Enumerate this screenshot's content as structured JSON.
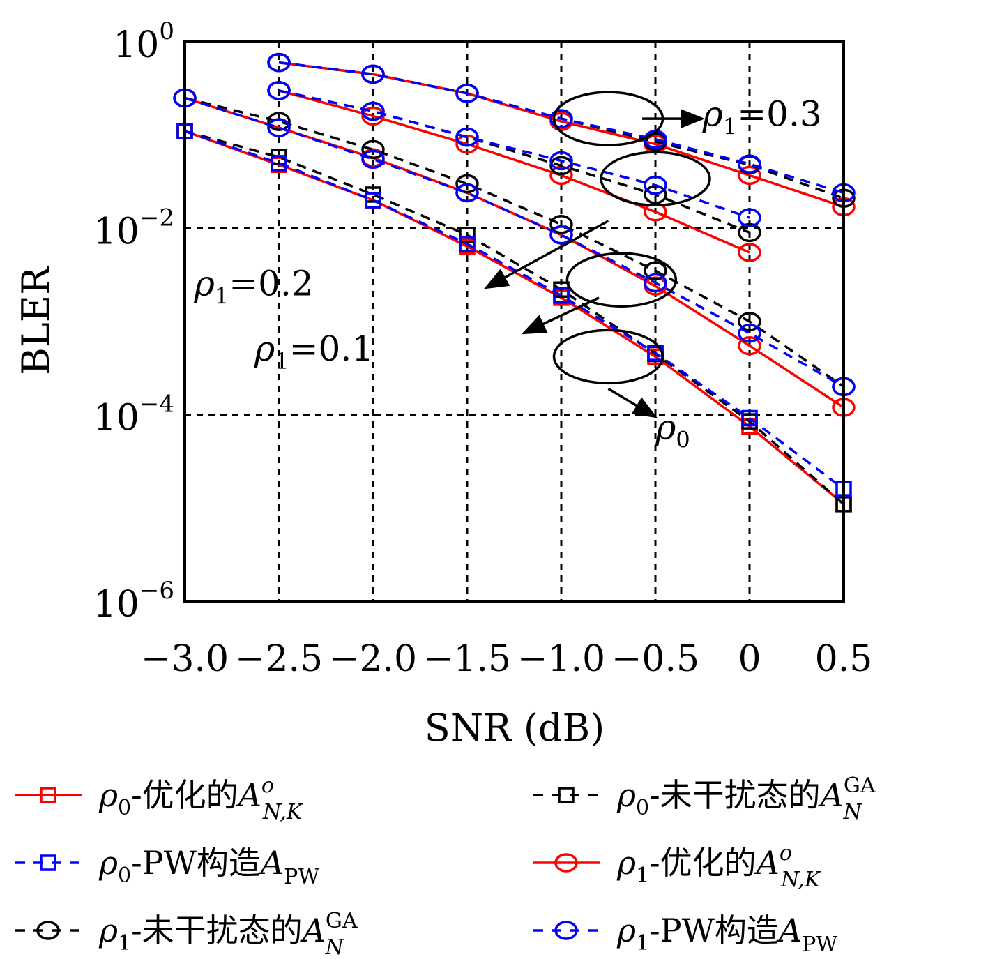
{
  "chart_data": {
    "type": "line",
    "xlabel": "SNR (dB)",
    "ylabel": "BLER",
    "xlim": [
      -3.0,
      0.5
    ],
    "ylim": [
      1e-06,
      1
    ],
    "y_scale": "log",
    "x_ticks": [
      -3.0,
      -2.5,
      -2.0,
      -1.5,
      -1.0,
      -0.5,
      0,
      0.5
    ],
    "x_tick_labels": [
      "−3.0",
      "−2.5",
      "−2.0",
      "−1.5",
      "−1.0",
      "−0.5",
      "0",
      "0.5"
    ],
    "y_ticks": [
      {
        "value": 1,
        "base": "10",
        "exp": "0"
      },
      {
        "value": 0.01,
        "base": "10",
        "exp": "−2"
      },
      {
        "value": 0.0001,
        "base": "10",
        "exp": "−4"
      },
      {
        "value": 1e-06,
        "base": "10",
        "exp": "−6"
      }
    ],
    "grid": true,
    "legend_position": "bottom",
    "series": [
      {
        "rho": "ρ",
        "rho_sub": "0",
        "text": "-优化的",
        "a_sup": "o",
        "a_sub": "N,K",
        "color": "#ff0000",
        "dash": "solid",
        "marker": "square",
        "x": [
          -3.0,
          -2.5,
          -2.0,
          -1.5,
          -1.0,
          -0.5,
          0,
          0.5
        ],
        "y": [
          0.11,
          0.048,
          0.02,
          0.0064,
          0.0018,
          0.00042,
          7.5e-05,
          1.1e-05
        ]
      },
      {
        "rho": "ρ",
        "rho_sub": "0",
        "text": "-未干扰态的",
        "a_sup": "GA",
        "a_sub": "N",
        "color": "#000000",
        "dash": "dashed",
        "marker": "square",
        "x": [
          -3.0,
          -2.5,
          -2.0,
          -1.5,
          -1.0,
          -0.5,
          0,
          0.5
        ],
        "y": [
          0.11,
          0.058,
          0.023,
          0.0085,
          0.0022,
          0.00045,
          8.5e-05,
          1.1e-05
        ]
      },
      {
        "rho": "ρ",
        "rho_sub": "0",
        "text": "-PW构造",
        "a_sup": "",
        "a_sub": "PW",
        "color": "#0000ff",
        "dash": "dashed",
        "marker": "square",
        "x": [
          -3.0,
          -2.5,
          -2.0,
          -1.5,
          -1.0,
          -0.5,
          0,
          0.5
        ],
        "y": [
          0.11,
          0.05,
          0.02,
          0.0068,
          0.0019,
          0.00046,
          9.2e-05,
          1.6e-05
        ]
      },
      {
        "rho": "ρ",
        "rho_sub": "1",
        "text": "-优化的",
        "a_sup": "o",
        "a_sub": "N,K",
        "color": "#ff0000",
        "dash": "solid",
        "marker": "circle",
        "x": [
          -3.0,
          -2.5,
          -2.0,
          -1.5,
          -1.0,
          -0.5,
          0,
          0.5
        ],
        "y": [
          0.25,
          0.12,
          0.057,
          0.024,
          0.0085,
          0.0024,
          0.00055,
          0.00012
        ]
      },
      {
        "rho": "ρ",
        "rho_sub": "1",
        "text": "-未干扰态的",
        "a_sup": "GA",
        "a_sub": "N",
        "color": "#000000",
        "dash": "dashed",
        "marker": "circle",
        "x": [
          -3.0,
          -2.5,
          -2.0,
          -1.5,
          -1.0,
          -0.5,
          0,
          0.5
        ],
        "y": [
          0.25,
          0.14,
          0.07,
          0.03,
          0.011,
          0.0035,
          0.001,
          0.0002
        ]
      },
      {
        "rho": "ρ",
        "rho_sub": "1",
        "text": "-PW构造",
        "a_sup": "",
        "a_sub": "PW",
        "color": "#0000ff",
        "dash": "dashed",
        "marker": "circle",
        "x": [
          -3.0,
          -2.5,
          -2.0,
          -1.5,
          -1.0,
          -0.5,
          0,
          0.5
        ],
        "y": [
          0.25,
          0.12,
          0.055,
          0.024,
          0.0085,
          0.0026,
          0.00075,
          0.0002
        ]
      },
      {
        "group": "rho1-0.2",
        "color": "#ff0000",
        "dash": "solid",
        "marker": "circle",
        "x": [
          -2.5,
          -2.0,
          -1.5,
          -1.0,
          -0.5,
          0
        ],
        "y": [
          0.3,
          0.16,
          0.08,
          0.037,
          0.015,
          0.0055
        ]
      },
      {
        "group": "rho1-0.2",
        "color": "#000000",
        "dash": "dashed",
        "marker": "circle",
        "x": [
          -2.5,
          -2.0,
          -1.5,
          -1.0,
          -0.5,
          0
        ],
        "y": [
          0.3,
          0.18,
          0.095,
          0.047,
          0.023,
          0.009
        ]
      },
      {
        "group": "rho1-0.2",
        "color": "#0000ff",
        "dash": "dashed",
        "marker": "circle",
        "x": [
          -2.5,
          -2.0,
          -1.5,
          -1.0,
          -0.5,
          0
        ],
        "y": [
          0.3,
          0.18,
          0.095,
          0.053,
          0.029,
          0.013
        ]
      },
      {
        "group": "rho1-0.3",
        "color": "#ff0000",
        "dash": "solid",
        "marker": "circle",
        "x": [
          -2.5,
          -2.0,
          -1.5,
          -1.0,
          -0.5,
          0,
          0.5
        ],
        "y": [
          0.6,
          0.45,
          0.28,
          0.14,
          0.08,
          0.037,
          0.017
        ]
      },
      {
        "group": "rho1-0.3",
        "color": "#000000",
        "dash": "dashed",
        "marker": "circle",
        "x": [
          -2.5,
          -2.0,
          -1.5,
          -1.0,
          -0.5,
          0,
          0.5
        ],
        "y": [
          0.6,
          0.45,
          0.28,
          0.15,
          0.085,
          0.048,
          0.021
        ]
      },
      {
        "group": "rho1-0.3",
        "color": "#0000ff",
        "dash": "dashed",
        "marker": "circle",
        "x": [
          -2.5,
          -2.0,
          -1.5,
          -1.0,
          -0.5,
          0,
          0.5
        ],
        "y": [
          0.6,
          0.45,
          0.28,
          0.15,
          0.09,
          0.049,
          0.024
        ]
      }
    ],
    "annotations": [
      {
        "id": "rho1-03",
        "sym": "ρ",
        "sub": "1",
        "text": "=0.3",
        "ex": -0.75,
        "ey": 0.15,
        "from": [
          -0.57,
          0.15
        ],
        "to": [
          -0.25,
          0.15
        ],
        "tx": -0.25,
        "ty": 0.125
      },
      {
        "id": "rho1-02",
        "sym": "ρ",
        "sub": "1",
        "text": "=0.2",
        "ex": -0.5,
        "ey": 0.034,
        "from": [
          -0.75,
          0.012
        ],
        "to": [
          -1.4,
          0.0023
        ],
        "tx": -2.95,
        "ty": 0.0019
      },
      {
        "id": "rho1-01",
        "sym": "ρ",
        "sub": "1",
        "text": "=0.1",
        "ex": -0.68,
        "ey": 0.0028,
        "from": [
          -0.8,
          0.0018
        ],
        "to": [
          -1.2,
          0.00075
        ],
        "tx": -2.63,
        "ty": 0.00038
      },
      {
        "id": "rho0",
        "sym": "ρ",
        "sub": "0",
        "text": "",
        "ex": -0.75,
        "ey": 0.00042,
        "from": [
          -0.75,
          0.00019
        ],
        "to": [
          -0.5,
          9.5e-05
        ],
        "tx": -0.5,
        "ty": 5.5e-05
      }
    ]
  }
}
